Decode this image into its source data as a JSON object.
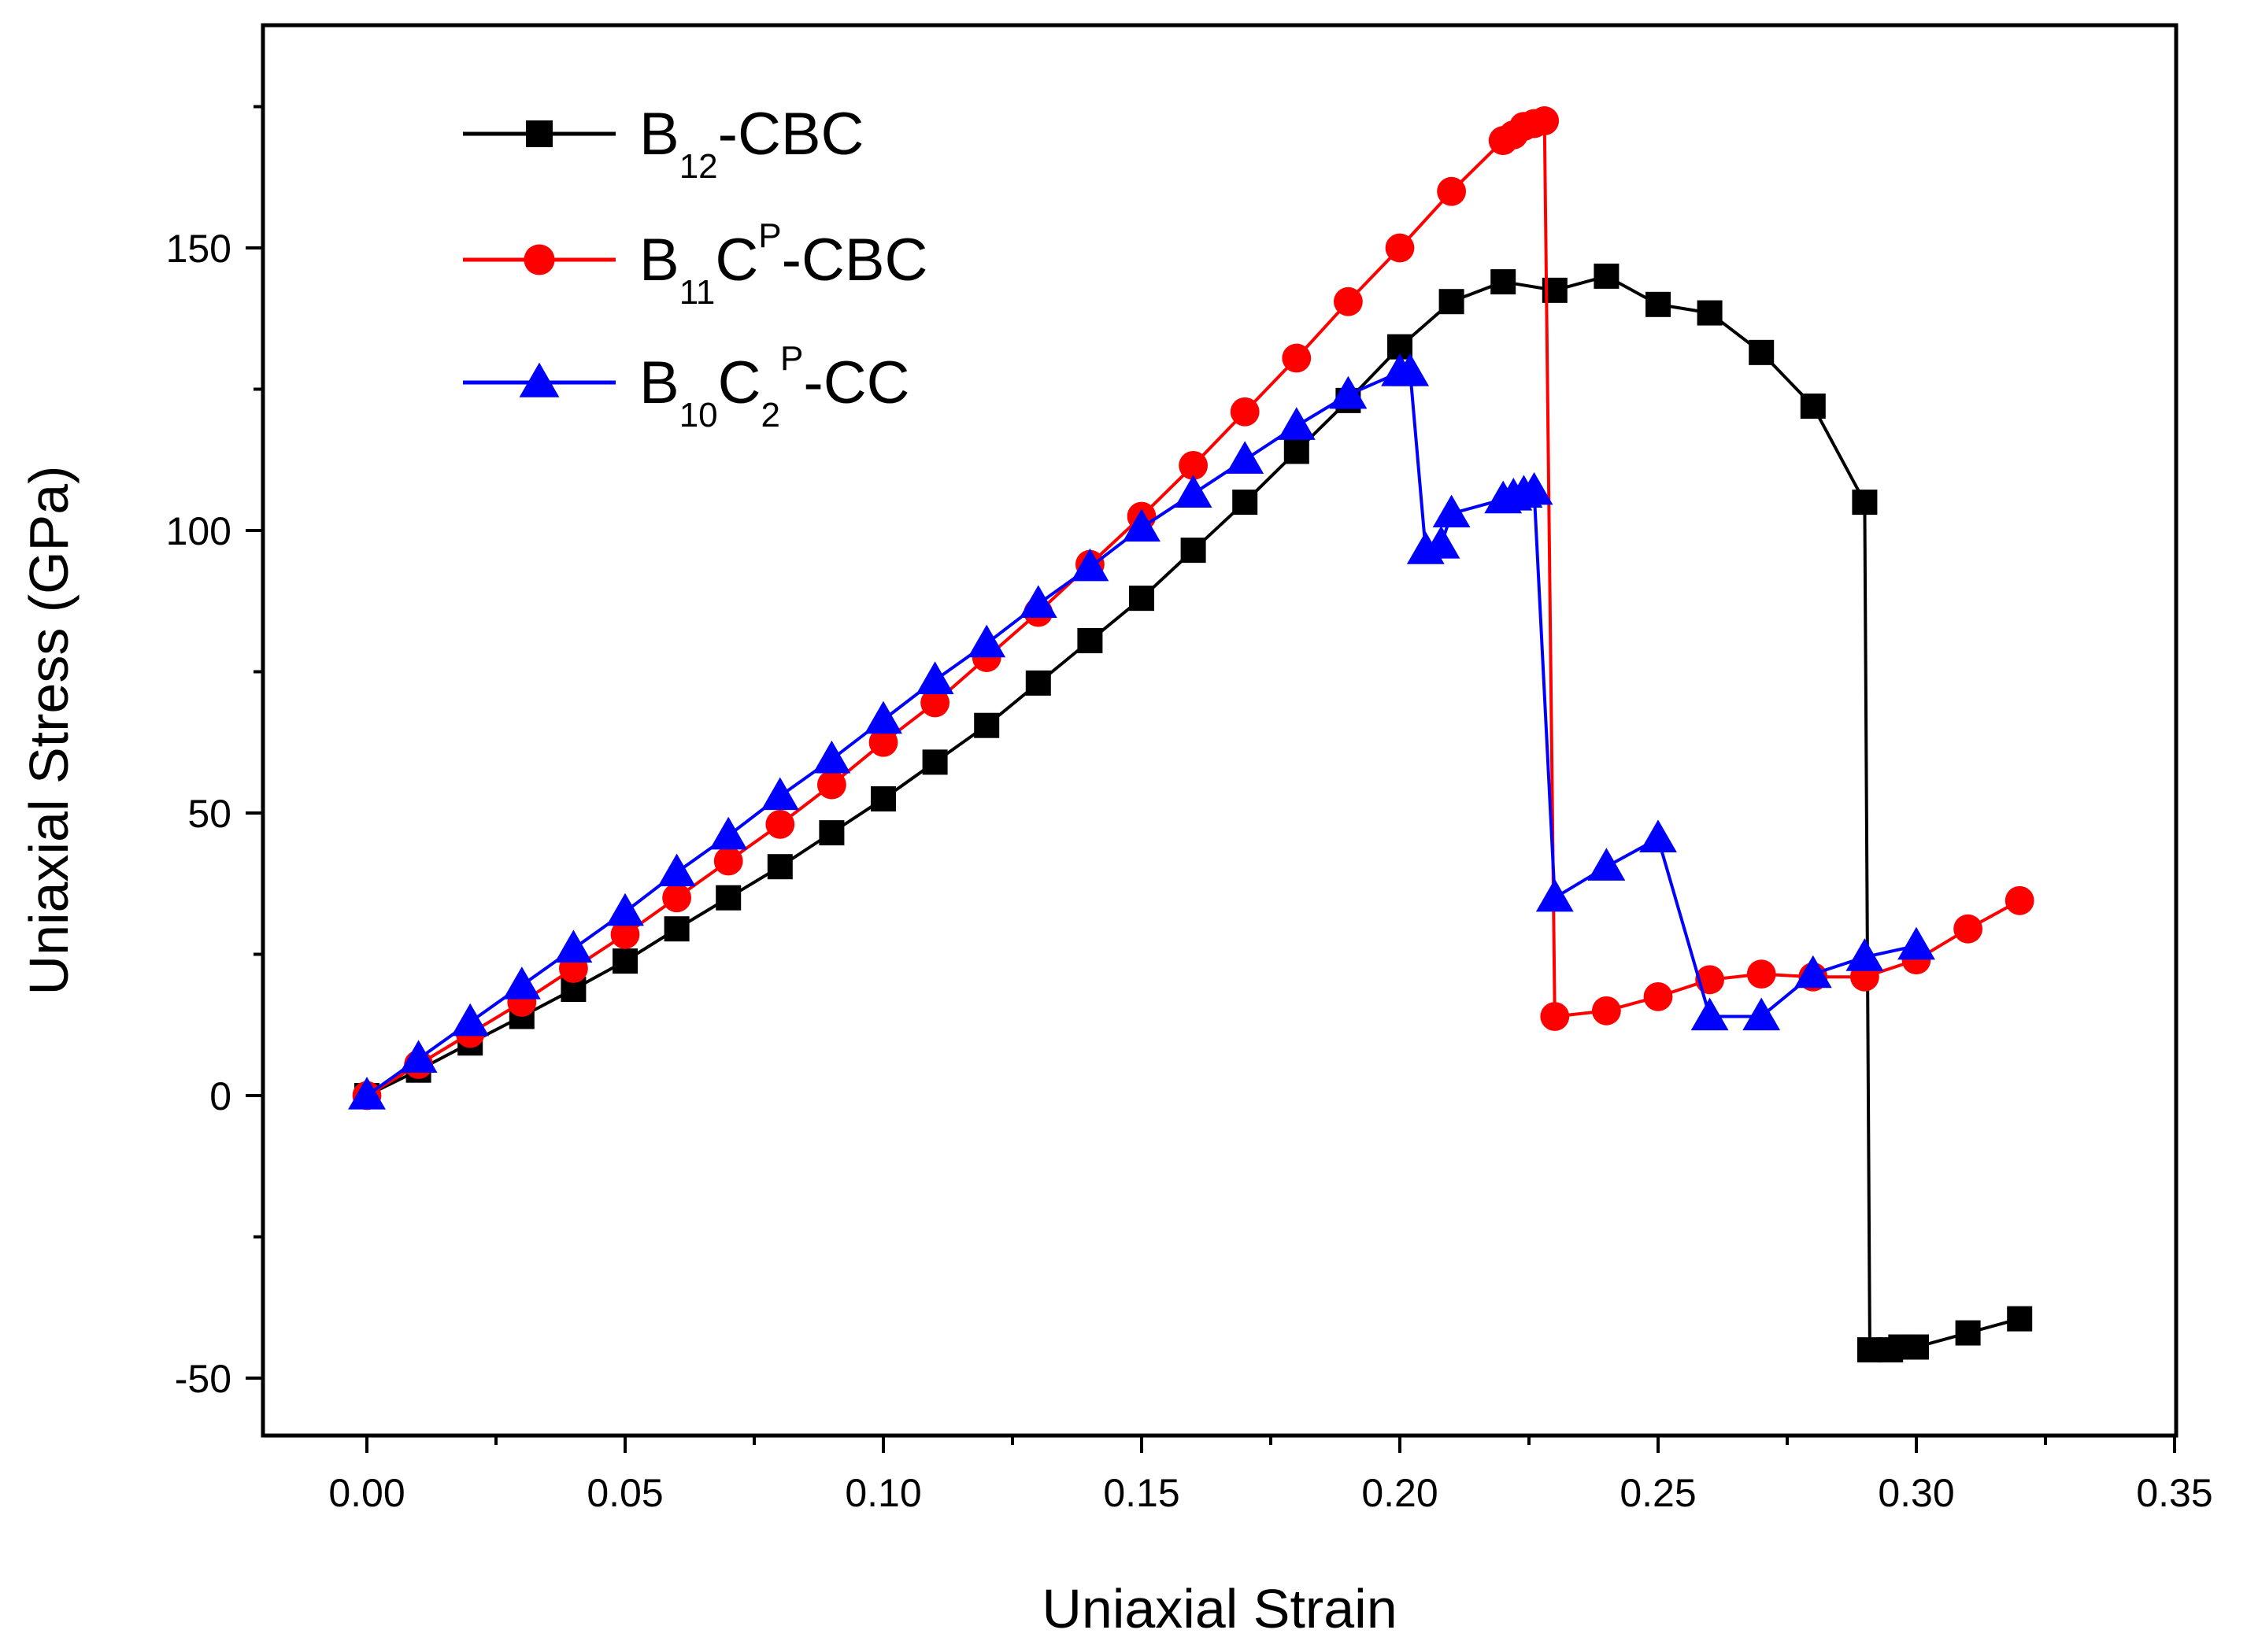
{
  "chart_data": {
    "type": "line",
    "title": "",
    "xlabel": "Uniaxial Strain",
    "ylabel": "Uniaxial Stress (GPa)",
    "xlim": [
      -0.02,
      0.35
    ],
    "ylim": [
      -60,
      190
    ],
    "xticks": [
      0.0,
      0.05,
      0.1,
      0.15,
      0.2,
      0.25,
      0.3,
      0.35
    ],
    "xtick_labels": [
      "0.00",
      "0.05",
      "0.10",
      "0.15",
      "0.20",
      "0.25",
      "0.30",
      "0.35"
    ],
    "yticks": [
      -50,
      0,
      50,
      100,
      150
    ],
    "ytick_labels": [
      "-50",
      "0",
      "50",
      "100",
      "150"
    ],
    "legend_position": "top-left",
    "series": [
      {
        "name": "B12-CBC",
        "legend": {
          "b": "B",
          "s1": "12",
          "sup1": "",
          "mid": "",
          "s2": "",
          "sup2": "",
          "rest": "-CBC"
        },
        "color": "#000000",
        "marker": "square",
        "x": [
          0,
          0.01,
          0.02,
          0.03,
          0.04,
          0.05,
          0.06,
          0.07,
          0.08,
          0.09,
          0.1,
          0.11,
          0.12,
          0.13,
          0.14,
          0.15,
          0.16,
          0.17,
          0.18,
          0.19,
          0.2,
          0.21,
          0.22,
          0.23,
          0.24,
          0.25,
          0.26,
          0.27,
          0.28,
          0.29,
          0.291,
          0.295,
          0.297,
          0.3,
          0.31,
          0.32
        ],
        "y": [
          0,
          4.5,
          9.3,
          14,
          18.8,
          23.8,
          29.5,
          35,
          40.5,
          46.5,
          52.5,
          59,
          65.5,
          73,
          80.5,
          88,
          96.5,
          105,
          114,
          123,
          132.5,
          140.5,
          144,
          142.5,
          145,
          140,
          138.5,
          131.5,
          122,
          105,
          -45,
          -45,
          -44.5,
          -44.5,
          -42,
          -39.5
        ]
      },
      {
        "name": "B11CP-CBC",
        "legend": {
          "b": "B",
          "s1": "11",
          "sup1": "",
          "mid": "C",
          "s2": "",
          "sup2": "P",
          "rest": "-CBC"
        },
        "color": "#ff0000",
        "marker": "circle",
        "x": [
          0,
          0.01,
          0.02,
          0.03,
          0.04,
          0.05,
          0.06,
          0.07,
          0.08,
          0.09,
          0.1,
          0.11,
          0.12,
          0.13,
          0.14,
          0.15,
          0.16,
          0.17,
          0.18,
          0.19,
          0.2,
          0.21,
          0.22,
          0.222,
          0.224,
          0.226,
          0.228,
          0.23,
          0.24,
          0.25,
          0.26,
          0.27,
          0.28,
          0.29,
          0.3,
          0.31,
          0.32
        ],
        "y": [
          0,
          5.5,
          11,
          16.5,
          22.5,
          28.5,
          35,
          41.5,
          48,
          55,
          62.5,
          69.5,
          77.5,
          85.5,
          94,
          102.5,
          111.5,
          121,
          130.5,
          140.5,
          150,
          160,
          169,
          170,
          171.5,
          172,
          172.5,
          14,
          15,
          17.5,
          20.5,
          21.5,
          21,
          21,
          24,
          29.5,
          34.5
        ]
      },
      {
        "name": "B10C2P-CC",
        "legend": {
          "b": "B",
          "s1": "10",
          "sup1": "",
          "mid": "C",
          "s2": "2",
          "sup2": "P",
          "rest": "-CC"
        },
        "color": "#0000ff",
        "marker": "triangle",
        "x": [
          0,
          0.01,
          0.02,
          0.03,
          0.04,
          0.05,
          0.06,
          0.07,
          0.08,
          0.09,
          0.1,
          0.11,
          0.12,
          0.13,
          0.14,
          0.15,
          0.16,
          0.17,
          0.18,
          0.19,
          0.2,
          0.202,
          0.205,
          0.208,
          0.21,
          0.22,
          0.222,
          0.224,
          0.226,
          0.23,
          0.24,
          0.25,
          0.26,
          0.27,
          0.28,
          0.29,
          0.3
        ],
        "y": [
          0,
          6.5,
          13,
          19.5,
          26,
          32.5,
          39.5,
          46,
          53,
          59.5,
          66.5,
          73.5,
          80,
          87,
          93.5,
          100.5,
          106.5,
          112.5,
          118.5,
          124,
          128,
          128,
          96.5,
          97.5,
          103,
          105.5,
          106,
          106.5,
          107,
          35,
          40.5,
          45.5,
          14,
          14,
          21.5,
          24.5,
          26.5
        ]
      }
    ]
  }
}
